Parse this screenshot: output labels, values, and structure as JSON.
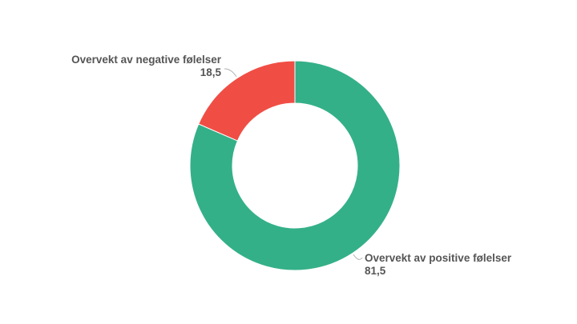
{
  "chart_data": {
    "type": "pie",
    "variant": "donut",
    "title": "",
    "legend": "none",
    "slices": [
      {
        "name": "Overvekt av positive følelser",
        "value": 81.5,
        "value_label": "81,5",
        "color": "#34b088"
      },
      {
        "name": "Overvekt av negative følelser",
        "value": 18.5,
        "value_label": "18,5",
        "color": "#f04e45"
      }
    ]
  }
}
